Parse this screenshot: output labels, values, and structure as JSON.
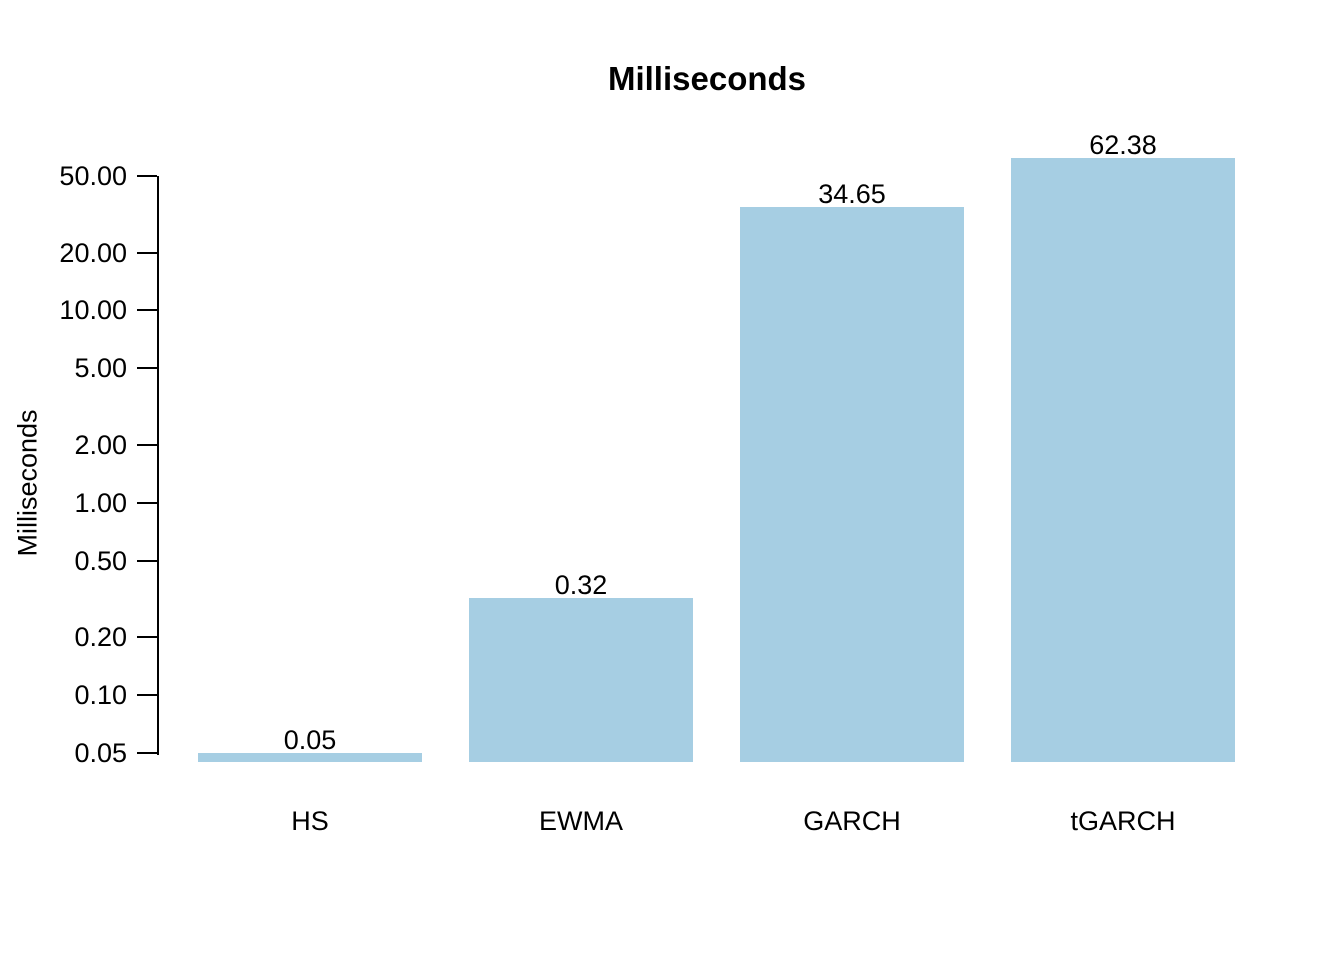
{
  "chart_data": {
    "type": "bar",
    "title": "Milliseconds",
    "ylabel": "Milliseconds",
    "categories": [
      "HS",
      "EWMA",
      "GARCH",
      "tGARCH"
    ],
    "values": [
      0.05,
      0.32,
      34.65,
      62.38
    ],
    "value_labels": [
      "0.05",
      "0.32",
      "34.65",
      "62.38"
    ],
    "y_scale": "log",
    "y_ticks": [
      {
        "value": 50,
        "label": "50.00"
      },
      {
        "value": 20,
        "label": "20.00"
      },
      {
        "value": 10,
        "label": "10.00"
      },
      {
        "value": 5,
        "label": "5.00"
      },
      {
        "value": 2,
        "label": "2.00"
      },
      {
        "value": 1,
        "label": "1.00"
      },
      {
        "value": 0.5,
        "label": "0.50"
      },
      {
        "value": 0.2,
        "label": "0.20"
      },
      {
        "value": 0.1,
        "label": "0.10"
      },
      {
        "value": 0.05,
        "label": "0.05"
      }
    ],
    "ylim": [
      0.044,
      50
    ],
    "grid": false,
    "legend": "none",
    "bar_color": "#A6CEE3",
    "axis_color": "#000000",
    "text_color": "#000000",
    "background_color": "#FFFFFF"
  }
}
